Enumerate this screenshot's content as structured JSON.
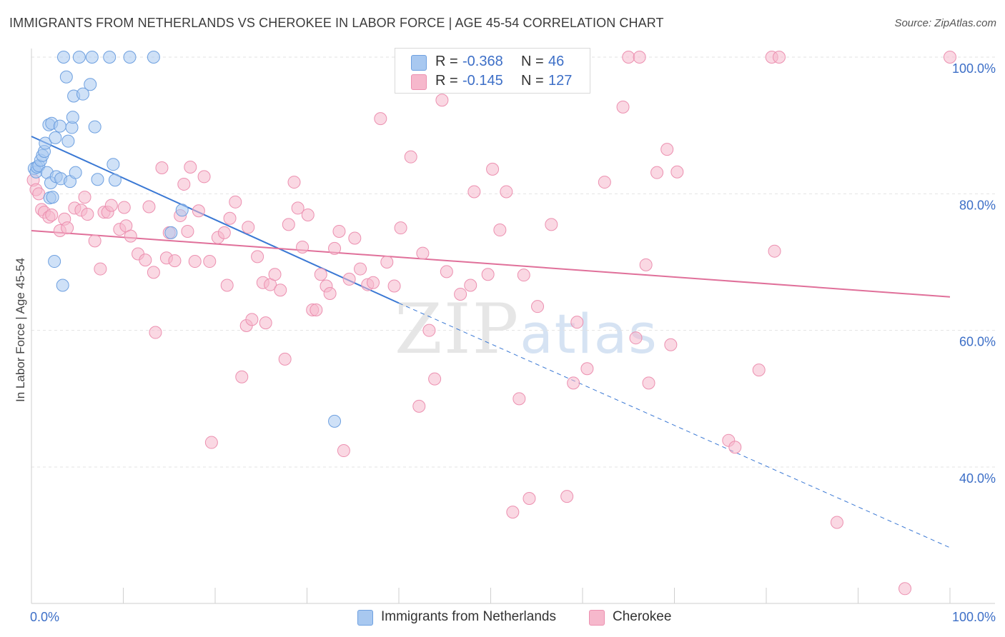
{
  "header": {
    "title": "IMMIGRANTS FROM NETHERLANDS VS CHEROKEE IN LABOR FORCE | AGE 45-54 CORRELATION CHART",
    "source": "Source: ZipAtlas.com"
  },
  "watermark": {
    "zip": "ZIP",
    "atlas": "atlas"
  },
  "legend_top": {
    "rows": [
      {
        "r_label": "R =",
        "r_value": "-0.368",
        "n_label": "N =",
        "n_value": "46",
        "color": "#a8c8f0",
        "text_color": "#3d6fc7"
      },
      {
        "r_label": "R =",
        "r_value": "-0.145",
        "n_label": "N =",
        "n_value": "127",
        "color": "#f6b8cc",
        "text_color": "#3d6fc7"
      }
    ]
  },
  "legend_bottom": {
    "items": [
      {
        "label": "Immigrants from Netherlands",
        "color": "#a8c8f0"
      },
      {
        "label": "Cherokee",
        "color": "#f6b8cc"
      }
    ]
  },
  "chart_data": {
    "type": "scatter",
    "title": "IMMIGRANTS FROM NETHERLANDS VS CHEROKEE IN LABOR FORCE | AGE 45-54 CORRELATION CHART",
    "xlabel": "",
    "ylabel": "In Labor Force | Age 45-54",
    "xlim": [
      0,
      100
    ],
    "ylim": [
      20,
      102
    ],
    "x_tick_labels": [
      "0.0%",
      "100.0%"
    ],
    "y_ticks": [
      40,
      60,
      80,
      100
    ],
    "y_tick_labels": [
      "40.0%",
      "60.0%",
      "80.0%",
      "100.0%"
    ],
    "grid": true,
    "legend_placement": "bottom",
    "series": [
      {
        "name": "Immigrants from Netherlands",
        "color": "#a8c8f0",
        "stroke": "#6ea0e0",
        "trend": {
          "x": [
            0,
            40
          ],
          "y": [
            88.4,
            64.0
          ],
          "dashed_to": [
            100,
            28.2
          ],
          "color": "#3a78d4"
        },
        "points": [
          [
            0.3,
            83.7
          ],
          [
            0.5,
            83.2
          ],
          [
            0.6,
            83.9
          ],
          [
            0.8,
            84.1
          ],
          [
            1.0,
            84.9
          ],
          [
            1.2,
            85.6
          ],
          [
            1.4,
            86.2
          ],
          [
            1.5,
            87.4
          ],
          [
            1.7,
            83.1
          ],
          [
            1.9,
            90.1
          ],
          [
            2.0,
            79.4
          ],
          [
            2.1,
            81.6
          ],
          [
            2.2,
            90.3
          ],
          [
            2.3,
            79.5
          ],
          [
            2.5,
            70.1
          ],
          [
            2.6,
            88.2
          ],
          [
            2.7,
            82.5
          ],
          [
            3.1,
            89.9
          ],
          [
            3.2,
            82.2
          ],
          [
            3.4,
            66.6
          ],
          [
            3.5,
            100.0
          ],
          [
            3.8,
            97.1
          ],
          [
            4.0,
            87.7
          ],
          [
            4.2,
            81.8
          ],
          [
            4.4,
            89.7
          ],
          [
            4.5,
            91.2
          ],
          [
            4.6,
            94.3
          ],
          [
            4.8,
            83.1
          ],
          [
            5.2,
            100.0
          ],
          [
            5.6,
            94.6
          ],
          [
            6.4,
            96.0
          ],
          [
            6.6,
            100.0
          ],
          [
            6.9,
            89.8
          ],
          [
            7.2,
            82.1
          ],
          [
            8.5,
            100.0
          ],
          [
            8.9,
            84.3
          ],
          [
            9.1,
            82.0
          ],
          [
            10.7,
            100.0
          ],
          [
            13.3,
            100.0
          ],
          [
            15.2,
            74.3
          ],
          [
            16.4,
            77.6
          ],
          [
            33.0,
            46.7
          ]
        ]
      },
      {
        "name": "Cherokee",
        "color": "#f6b8cc",
        "stroke": "#ec90b0",
        "trend": {
          "x": [
            0,
            100
          ],
          "y": [
            74.6,
            64.9
          ],
          "color": "#e0709a"
        },
        "points": [
          [
            0.2,
            82.0
          ],
          [
            0.5,
            80.6
          ],
          [
            0.8,
            80.0
          ],
          [
            1.1,
            77.7
          ],
          [
            1.4,
            77.3
          ],
          [
            1.9,
            76.6
          ],
          [
            2.2,
            76.9
          ],
          [
            3.1,
            74.6
          ],
          [
            3.6,
            76.3
          ],
          [
            3.9,
            75.0
          ],
          [
            4.7,
            77.9
          ],
          [
            5.4,
            77.6
          ],
          [
            5.8,
            79.5
          ],
          [
            6.1,
            77.0
          ],
          [
            6.9,
            73.1
          ],
          [
            7.5,
            69.0
          ],
          [
            7.9,
            77.3
          ],
          [
            8.3,
            77.3
          ],
          [
            8.7,
            78.3
          ],
          [
            9.6,
            74.8
          ],
          [
            10.1,
            78.0
          ],
          [
            10.3,
            75.3
          ],
          [
            10.8,
            73.8
          ],
          [
            11.6,
            71.2
          ],
          [
            12.4,
            70.3
          ],
          [
            12.8,
            78.1
          ],
          [
            13.3,
            68.5
          ],
          [
            13.5,
            59.7
          ],
          [
            14.2,
            83.8
          ],
          [
            14.7,
            70.6
          ],
          [
            15.0,
            74.3
          ],
          [
            15.6,
            70.2
          ],
          [
            16.2,
            76.8
          ],
          [
            16.6,
            81.4
          ],
          [
            17.0,
            74.5
          ],
          [
            17.3,
            83.9
          ],
          [
            17.8,
            70.1
          ],
          [
            18.2,
            77.5
          ],
          [
            18.8,
            82.5
          ],
          [
            19.4,
            70.1
          ],
          [
            19.6,
            43.6
          ],
          [
            20.3,
            73.6
          ],
          [
            21.0,
            74.3
          ],
          [
            21.3,
            66.6
          ],
          [
            21.6,
            76.4
          ],
          [
            22.2,
            78.8
          ],
          [
            22.9,
            53.2
          ],
          [
            23.4,
            60.7
          ],
          [
            23.6,
            75.1
          ],
          [
            24.0,
            61.6
          ],
          [
            24.6,
            70.8
          ],
          [
            25.2,
            67.0
          ],
          [
            25.5,
            61.1
          ],
          [
            26.0,
            66.7
          ],
          [
            26.5,
            68.2
          ],
          [
            27.1,
            65.9
          ],
          [
            27.6,
            55.8
          ],
          [
            28.0,
            75.5
          ],
          [
            28.6,
            81.7
          ],
          [
            29.0,
            77.9
          ],
          [
            29.5,
            72.2
          ],
          [
            30.1,
            76.9
          ],
          [
            30.6,
            63.0
          ],
          [
            31.0,
            63.0
          ],
          [
            31.5,
            68.2
          ],
          [
            32.1,
            66.5
          ],
          [
            32.5,
            65.4
          ],
          [
            33.0,
            72.0
          ],
          [
            33.5,
            74.5
          ],
          [
            34.0,
            42.4
          ],
          [
            34.6,
            67.5
          ],
          [
            35.2,
            73.5
          ],
          [
            35.8,
            69.0
          ],
          [
            36.6,
            66.7
          ],
          [
            37.2,
            67.0
          ],
          [
            38.0,
            91.0
          ],
          [
            38.7,
            70.0
          ],
          [
            39.5,
            66.5
          ],
          [
            40.2,
            75.0
          ],
          [
            41.3,
            85.4
          ],
          [
            42.2,
            48.9
          ],
          [
            42.6,
            71.3
          ],
          [
            43.3,
            60.0
          ],
          [
            43.9,
            52.9
          ],
          [
            44.7,
            93.7
          ],
          [
            45.2,
            68.6
          ],
          [
            46.7,
            65.3
          ],
          [
            47.8,
            66.6
          ],
          [
            48.2,
            80.3
          ],
          [
            49.7,
            68.2
          ],
          [
            50.2,
            83.6
          ],
          [
            51.0,
            74.7
          ],
          [
            51.7,
            80.3
          ],
          [
            52.4,
            33.4
          ],
          [
            53.1,
            50.0
          ],
          [
            53.6,
            68.1
          ],
          [
            54.2,
            35.4
          ],
          [
            55.1,
            63.5
          ],
          [
            56.6,
            75.5
          ],
          [
            57.3,
            100.0
          ],
          [
            58.3,
            35.7
          ],
          [
            59.0,
            52.3
          ],
          [
            59.4,
            61.2
          ],
          [
            60.5,
            54.4
          ],
          [
            62.4,
            81.7
          ],
          [
            64.4,
            92.7
          ],
          [
            65.0,
            100.0
          ],
          [
            65.8,
            58.9
          ],
          [
            66.2,
            100.0
          ],
          [
            66.9,
            69.6
          ],
          [
            67.2,
            52.3
          ],
          [
            68.1,
            83.1
          ],
          [
            69.2,
            86.5
          ],
          [
            69.6,
            57.9
          ],
          [
            70.3,
            83.2
          ],
          [
            75.9,
            43.9
          ],
          [
            76.6,
            42.9
          ],
          [
            79.2,
            54.2
          ],
          [
            80.6,
            100.0
          ],
          [
            80.9,
            71.6
          ],
          [
            81.4,
            100.0
          ],
          [
            87.7,
            31.9
          ],
          [
            95.1,
            22.2
          ],
          [
            100.0,
            100.0
          ]
        ]
      }
    ]
  }
}
